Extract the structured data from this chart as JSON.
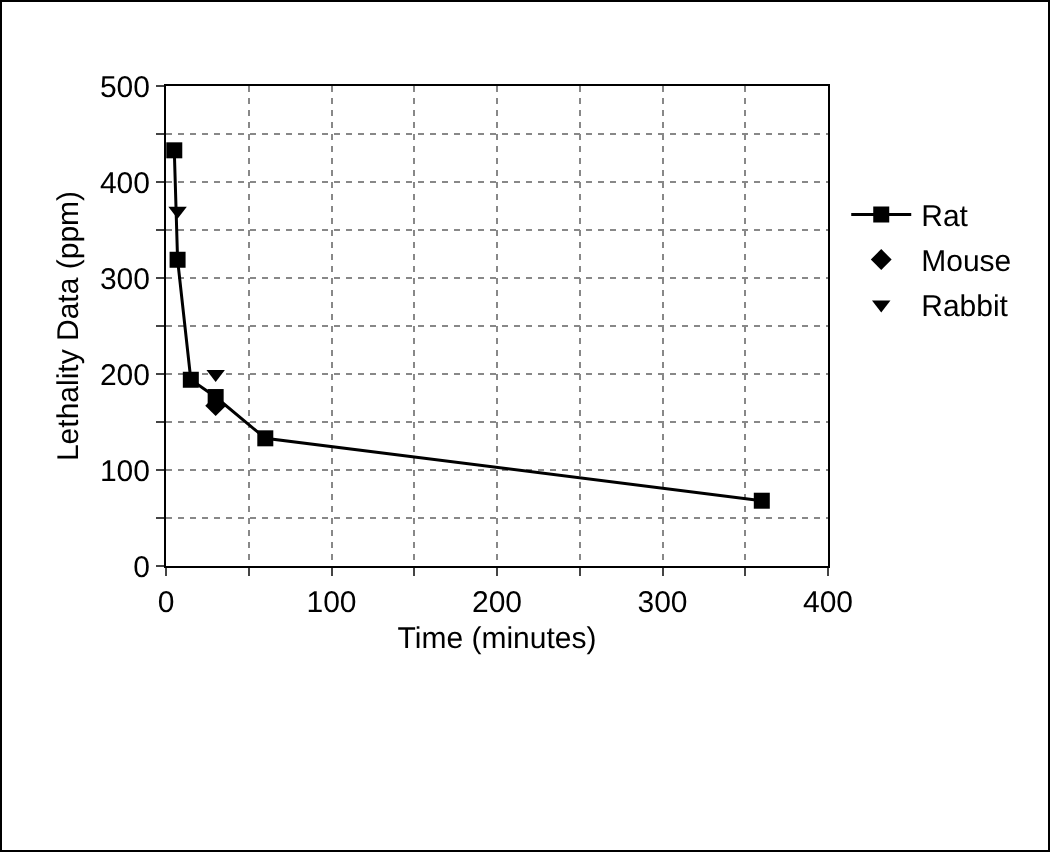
{
  "chart_data": {
    "type": "line",
    "xlabel": "Time (minutes)",
    "ylabel": "Lethality Data (ppm)",
    "xlim": [
      0,
      400
    ],
    "ylim": [
      0,
      500
    ],
    "xticks": [
      0,
      {
        "value": 50,
        "label": null
      },
      100,
      {
        "value": 150,
        "label": null
      },
      200,
      {
        "value": 250,
        "label": null
      },
      300,
      {
        "value": 350,
        "label": null
      },
      400
    ],
    "yticks": [
      0,
      {
        "value": 50,
        "label": null
      },
      100,
      {
        "value": 150,
        "label": null
      },
      200,
      {
        "value": 250,
        "label": null
      },
      300,
      {
        "value": 350,
        "label": null
      },
      400,
      {
        "value": 450,
        "label": null
      },
      500
    ],
    "grid": true,
    "legend": "right",
    "series": [
      {
        "name": "Rat",
        "color": "#000000",
        "marker": "square",
        "x": [
          5,
          7,
          15,
          30,
          60,
          360
        ],
        "values": [
          433,
          319,
          194,
          176,
          133,
          68
        ]
      },
      {
        "name": "Mouse",
        "type": "scatter",
        "color": "#000000",
        "marker": "diamond",
        "x": [
          30
        ],
        "values": [
          167
        ]
      },
      {
        "name": "Rabbit",
        "type": "scatter",
        "color": "#000000",
        "marker": "triangle",
        "x": [
          7,
          30
        ],
        "values": [
          370,
          200
        ]
      }
    ]
  }
}
